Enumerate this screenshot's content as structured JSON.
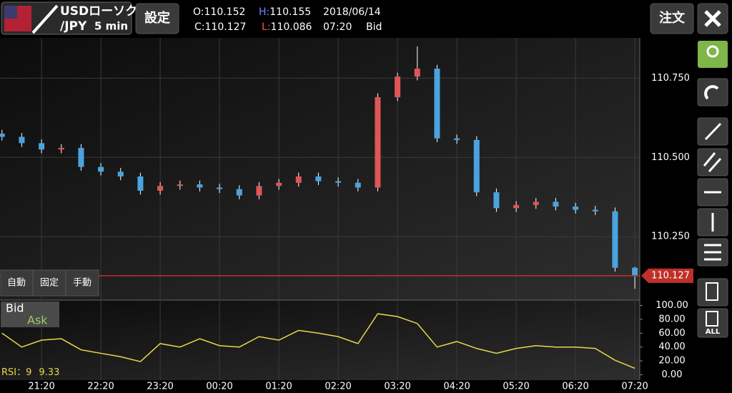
{
  "ui": {
    "pair_top": "USDローソク",
    "pair_bottom": "/JPY",
    "timeframe": "5 min",
    "settings": "設定",
    "o_label": "O:",
    "h_label": "H:",
    "c_label": "C:",
    "l_label": "L:",
    "date": "2018/06/14",
    "time": "07:20",
    "side": "Bid",
    "order": "注文",
    "mode_buttons": [
      "自動",
      "固定",
      "手動"
    ],
    "bid": "Bid",
    "ask": "Ask",
    "rsi_label": "RSI：9",
    "all": "ALL"
  },
  "chart_data": [
    {
      "type": "candlestick",
      "up_color": "#e05555",
      "down_color": "#4aa3df",
      "price_line_color": "#c0302a",
      "x": [
        -40,
        -20,
        0,
        20,
        40,
        60,
        80,
        100,
        120,
        140,
        160,
        180,
        200,
        220,
        240,
        260,
        280,
        300,
        320,
        340,
        360,
        380,
        400,
        420,
        440,
        460,
        480,
        500,
        520,
        540,
        560,
        580,
        600
      ],
      "open": [
        110.575,
        110.565,
        110.545,
        110.525,
        110.53,
        110.47,
        110.455,
        110.44,
        110.395,
        110.41,
        110.415,
        110.405,
        110.4,
        110.38,
        110.41,
        110.42,
        110.44,
        110.425,
        110.42,
        110.405,
        110.69,
        110.755,
        110.78,
        110.56,
        110.555,
        110.39,
        110.34,
        110.35,
        110.36,
        110.345,
        110.335,
        110.33,
        110.152
      ],
      "high": [
        110.587,
        110.577,
        110.557,
        110.542,
        110.542,
        110.482,
        110.467,
        110.452,
        110.422,
        110.427,
        110.427,
        110.417,
        110.412,
        110.422,
        110.432,
        110.452,
        110.452,
        110.437,
        110.432,
        110.702,
        110.767,
        110.85,
        110.792,
        110.572,
        110.567,
        110.402,
        110.362,
        110.372,
        110.372,
        110.357,
        110.347,
        110.342,
        110.155
      ],
      "low": [
        110.553,
        110.533,
        110.513,
        110.513,
        110.458,
        110.443,
        110.428,
        110.383,
        110.383,
        110.398,
        110.393,
        110.388,
        110.368,
        110.368,
        110.398,
        110.408,
        110.413,
        110.408,
        110.393,
        110.393,
        110.678,
        110.743,
        110.548,
        110.543,
        110.378,
        110.328,
        110.328,
        110.338,
        110.333,
        110.323,
        110.318,
        110.14,
        110.086
      ],
      "close": [
        110.565,
        110.545,
        110.525,
        110.53,
        110.47,
        110.455,
        110.44,
        110.395,
        110.41,
        110.415,
        110.405,
        110.4,
        110.38,
        110.41,
        110.42,
        110.44,
        110.425,
        110.42,
        110.405,
        110.69,
        110.755,
        110.78,
        110.56,
        110.555,
        110.39,
        110.34,
        110.35,
        110.36,
        110.345,
        110.335,
        110.33,
        110.152,
        110.127
      ],
      "xlim": [
        -42,
        605
      ],
      "xticks": [
        {
          "value": 0,
          "label": "21:20"
        },
        {
          "value": 60,
          "label": "22:20"
        },
        {
          "value": 120,
          "label": "23:20"
        },
        {
          "value": 180,
          "label": "00:20"
        },
        {
          "value": 240,
          "label": "01:20"
        },
        {
          "value": 300,
          "label": "02:20"
        },
        {
          "value": 360,
          "label": "03:20"
        },
        {
          "value": 420,
          "label": "04:20"
        },
        {
          "value": 480,
          "label": "05:20"
        },
        {
          "value": 540,
          "label": "06:20"
        },
        {
          "value": 600,
          "label": "07:20"
        }
      ],
      "ylim": [
        110.05,
        110.877
      ],
      "yticks": [
        {
          "value": 110.25,
          "label": "110.250"
        },
        {
          "value": 110.5,
          "label": "110.500"
        },
        {
          "value": 110.75,
          "label": "110.750"
        }
      ],
      "grid": true
    },
    {
      "type": "line",
      "color": "#e8d84a",
      "x": [
        -40,
        -20,
        0,
        20,
        40,
        60,
        80,
        100,
        120,
        140,
        160,
        180,
        200,
        220,
        240,
        260,
        280,
        300,
        320,
        340,
        360,
        380,
        400,
        420,
        440,
        460,
        480,
        500,
        520,
        540,
        560,
        580,
        600
      ],
      "values": [
        60,
        40,
        50,
        52,
        36,
        31,
        26,
        19,
        45,
        40,
        52,
        42,
        40,
        55,
        50,
        64,
        60,
        55,
        45,
        88,
        84,
        74,
        40,
        48,
        38,
        31,
        38,
        42,
        40,
        40,
        38,
        21,
        9.33
      ],
      "xlim": [
        -42,
        605
      ],
      "ylim": [
        -7.7,
        107.7
      ],
      "yticks": [
        {
          "value": 0,
          "label": "0.00"
        },
        {
          "value": 20,
          "label": "20.00"
        },
        {
          "value": 40,
          "label": "40.00"
        },
        {
          "value": 60,
          "label": "60.00"
        },
        {
          "value": 80,
          "label": "80.00"
        },
        {
          "value": 100,
          "label": "100.00"
        }
      ]
    }
  ]
}
